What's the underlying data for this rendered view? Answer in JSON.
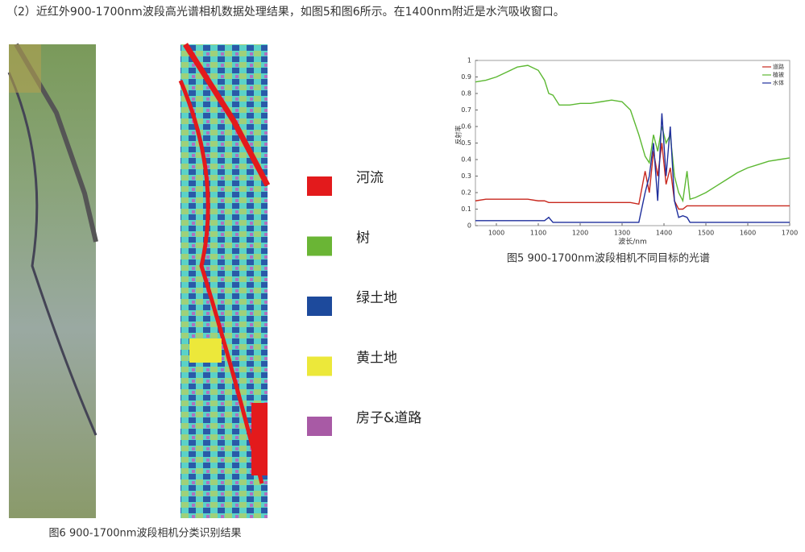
{
  "header": {
    "text": "（2）近红外900-1700nm波段高光谱相机数据处理结果，如图5和图6所示。在1400nm附近是水汽吸收窗口。"
  },
  "figure6": {
    "caption": "图6 900-1700nm波段相机分类识别结果"
  },
  "legend": [
    {
      "label": "河流",
      "color": "#e31a1c"
    },
    {
      "label": "树",
      "color": "#6ab535"
    },
    {
      "label": "绿土地",
      "color": "#1d4a9c"
    },
    {
      "label": "黄土地",
      "color": "#ece83a"
    },
    {
      "label": "房子&道路",
      "color": "#a85aa5"
    }
  ],
  "chart_data": {
    "type": "line",
    "caption": "图5 900-1700nm波段相机不同目标的光谱",
    "x_label": "波长/nm",
    "y_label": "反射率",
    "x": [
      950,
      975,
      1000,
      1025,
      1050,
      1075,
      1100,
      1115,
      1125,
      1135,
      1150,
      1175,
      1200,
      1225,
      1250,
      1275,
      1300,
      1320,
      1340,
      1355,
      1365,
      1375,
      1385,
      1395,
      1405,
      1415,
      1425,
      1435,
      1445,
      1455,
      1462,
      1475,
      1500,
      1525,
      1550,
      1575,
      1600,
      1625,
      1650,
      1675,
      1700
    ],
    "series": [
      {
        "name": "道路",
        "color": "#c8281e",
        "values": [
          0.15,
          0.16,
          0.16,
          0.16,
          0.16,
          0.16,
          0.15,
          0.15,
          0.14,
          0.14,
          0.14,
          0.14,
          0.14,
          0.14,
          0.14,
          0.14,
          0.14,
          0.14,
          0.13,
          0.33,
          0.2,
          0.45,
          0.3,
          0.5,
          0.25,
          0.35,
          0.15,
          0.1,
          0.1,
          0.12,
          0.12,
          0.12,
          0.12,
          0.12,
          0.12,
          0.12,
          0.12,
          0.12,
          0.12,
          0.12,
          0.12
        ]
      },
      {
        "name": "植被",
        "color": "#5cb832",
        "values": [
          0.87,
          0.88,
          0.9,
          0.93,
          0.96,
          0.97,
          0.94,
          0.88,
          0.8,
          0.79,
          0.73,
          0.73,
          0.74,
          0.74,
          0.75,
          0.76,
          0.75,
          0.7,
          0.55,
          0.42,
          0.38,
          0.55,
          0.45,
          0.6,
          0.5,
          0.55,
          0.3,
          0.2,
          0.15,
          0.33,
          0.16,
          0.17,
          0.2,
          0.24,
          0.28,
          0.32,
          0.35,
          0.37,
          0.39,
          0.4,
          0.41
        ]
      },
      {
        "name": "水体",
        "color": "#1e2e9c",
        "values": [
          0.03,
          0.03,
          0.03,
          0.03,
          0.03,
          0.03,
          0.03,
          0.03,
          0.05,
          0.02,
          0.02,
          0.02,
          0.02,
          0.02,
          0.02,
          0.02,
          0.02,
          0.02,
          0.02,
          0.2,
          0.3,
          0.5,
          0.15,
          0.68,
          0.3,
          0.6,
          0.15,
          0.05,
          0.06,
          0.05,
          0.02,
          0.02,
          0.02,
          0.02,
          0.02,
          0.02,
          0.02,
          0.02,
          0.02,
          0.02,
          0.02
        ]
      }
    ],
    "xlim": [
      950,
      1700
    ],
    "xticks": [
      1000,
      1100,
      1200,
      1300,
      1400,
      1500,
      1600,
      1700
    ],
    "ylim": [
      0,
      1
    ],
    "yticks": [
      0,
      0.1,
      0.2,
      0.3,
      0.4,
      0.5,
      0.6,
      0.7,
      0.8,
      0.9,
      1
    ]
  }
}
